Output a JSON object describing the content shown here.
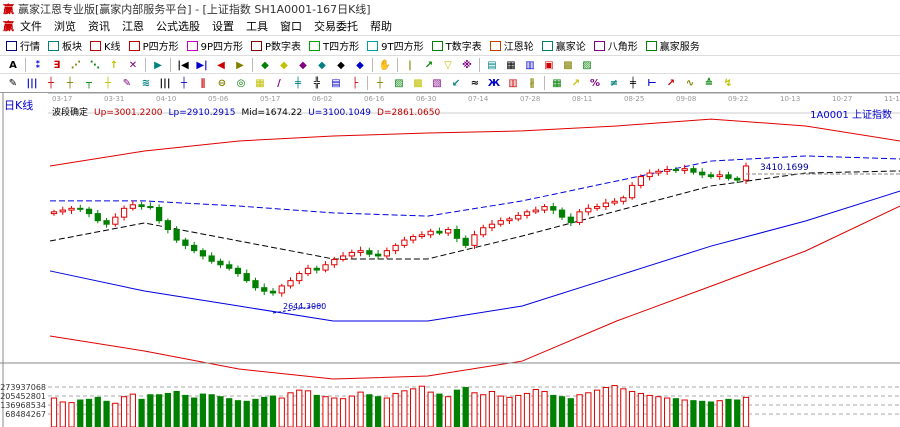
{
  "window": {
    "title": "赢家江恩专业版[赢家内部服务平台] - [上证指数 SH1A0001-167日K线]"
  },
  "menu": [
    "文件",
    "浏览",
    "资讯",
    "江恩",
    "公式选股",
    "设置",
    "工具",
    "窗口",
    "交易委托",
    "帮助"
  ],
  "toolbar": [
    {
      "label": "行情",
      "color": "#000080"
    },
    {
      "label": "板块",
      "color": "#008080"
    },
    {
      "label": "K线",
      "color": "#c00000"
    },
    {
      "label": "P四方形",
      "color": "#c00000"
    },
    {
      "label": "9P四方形",
      "color": "#c000c0"
    },
    {
      "label": "P数字表",
      "color": "#800000"
    },
    {
      "label": "T四方形",
      "color": "#00a000"
    },
    {
      "label": "9T四方形",
      "color": "#00a0a0"
    },
    {
      "label": "T数字表",
      "color": "#008000"
    },
    {
      "label": "江恩轮",
      "color": "#c04000"
    },
    {
      "label": "赢家论",
      "color": "#008060"
    },
    {
      "label": "八角形",
      "color": "#800080"
    },
    {
      "label": "赢家服务",
      "color": "#008000"
    }
  ],
  "toolbar2_icons": [
    "A",
    "⁑",
    "∃",
    "⋰",
    "⋱",
    "↑",
    "✕",
    "▶",
    "|◀",
    "▶|",
    "◀",
    "▶",
    "◆",
    "◆",
    "◆",
    "◆",
    "◆",
    "◆",
    "✋",
    "|",
    "↗",
    "▽",
    "※",
    "▤",
    "▦",
    "▥",
    "▣",
    "▩",
    "▨"
  ],
  "toolbar3_icons": [
    "✎",
    "|||",
    "┼",
    "┼",
    "┬",
    "┼",
    "✎",
    "≋",
    "|||",
    "┼",
    "∥",
    "⊖",
    "◎",
    "▦",
    "/",
    "╪",
    "╬",
    "▤",
    "├",
    "┼",
    "▨",
    "▩",
    "▧",
    "↙",
    "≈",
    "Ж",
    "▥",
    "∦",
    "▦",
    "↗",
    "%",
    "≠",
    "╪",
    "⊢",
    "↗",
    "∿",
    "≙",
    "↯"
  ],
  "chart": {
    "period": "日K线",
    "dates": [
      "03-17",
      "03-31",
      "04-10",
      "05-06",
      "05-17",
      "06-02",
      "06-16",
      "06-30",
      "07-14",
      "07-28",
      "08-11",
      "08-25",
      "09-08",
      "09-22",
      "10-13",
      "10-27",
      "11-10"
    ],
    "info": [
      {
        "text": "波段确定",
        "color": "#000000"
      },
      {
        "text": "Up=3001.2200",
        "color": "#c00000"
      },
      {
        "text": "Lp=2910.2915",
        "color": "#0000c0"
      },
      {
        "text": "Mid=1674.22",
        "color": "#000000"
      },
      {
        "text": "U=3100.1049",
        "color": "#0000c0"
      },
      {
        "text": "D=2861.0650",
        "color": "#c00000"
      }
    ],
    "code": "1A0001 上证指数",
    "high_label": "3410.1699",
    "low_label": "2644.3000"
  },
  "chart_data": {
    "type": "candlestick",
    "closes": [
      3150,
      3160,
      3170,
      3165,
      3140,
      3100,
      3080,
      3120,
      3170,
      3190,
      3180,
      3175,
      3100,
      3050,
      2990,
      2960,
      2930,
      2900,
      2870,
      2850,
      2830,
      2800,
      2760,
      2720,
      2700,
      2690,
      2730,
      2760,
      2800,
      2830,
      2820,
      2850,
      2880,
      2900,
      2920,
      2930,
      2910,
      2900,
      2930,
      2960,
      2990,
      3010,
      3020,
      3040,
      3030,
      3050,
      3000,
      2960,
      3020,
      3060,
      3080,
      3100,
      3110,
      3130,
      3150,
      3160,
      3180,
      3160,
      3120,
      3090,
      3150,
      3170,
      3180,
      3200,
      3210,
      3230,
      3300,
      3350,
      3370,
      3380,
      3390,
      3385,
      3395,
      3375,
      3360,
      3350,
      3360,
      3340,
      3330,
      3410
    ],
    "volumes": [
      190,
      160,
      155,
      175,
      180,
      195,
      165,
      150,
      200,
      220,
      180,
      215,
      215,
      225,
      240,
      210,
      190,
      220,
      215,
      200,
      185,
      170,
      165,
      180,
      195,
      205,
      190,
      230,
      250,
      245,
      210,
      200,
      190,
      185,
      205,
      235,
      215,
      200,
      190,
      225,
      245,
      260,
      280,
      235,
      220,
      200,
      250,
      270,
      230,
      215,
      240,
      205,
      195,
      210,
      225,
      255,
      240,
      210,
      200,
      185,
      215,
      230,
      250,
      270,
      285,
      260,
      240,
      225,
      210,
      200,
      190,
      185,
      175,
      170,
      165,
      160,
      170,
      180,
      175,
      195
    ],
    "volume_labels": [
      "273937068",
      "205452801",
      "136968534",
      "68484267"
    ],
    "bands": [
      {
        "color": "#e00000",
        "dash": false,
        "values": [
          3410,
          3495,
          3552,
          3580,
          3597,
          3609,
          3637,
          3676,
          3637,
          3552
        ]
      },
      {
        "color": "#0000e0",
        "dash": true,
        "values": [
          3212,
          3212,
          3183,
          3144,
          3126,
          3212,
          3325,
          3438,
          3467,
          3450
        ]
      },
      {
        "color": "#000000",
        "dash": true,
        "values": [
          2985,
          3087,
          2985,
          2883,
          2883,
          3013,
          3155,
          3297,
          3370,
          3382
        ]
      },
      {
        "color": "#0000e0",
        "dash": false,
        "values": [
          2815,
          2701,
          2616,
          2531,
          2531,
          2616,
          2786,
          2956,
          3098,
          3268
        ]
      },
      {
        "color": "#e00000",
        "dash": false,
        "values": [
          2446,
          2361,
          2259,
          2202,
          2219,
          2304,
          2531,
          2729,
          2928,
          3183
        ]
      }
    ],
    "up_color": "#e00000",
    "down_color": "#008000"
  }
}
